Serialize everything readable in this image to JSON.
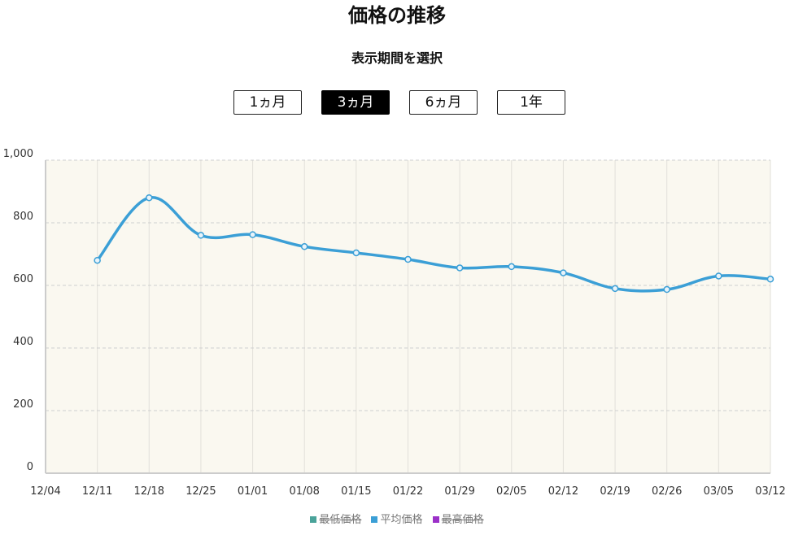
{
  "header": {
    "title": "価格の推移",
    "subtitle": "表示期間を選択"
  },
  "period_buttons": [
    {
      "label": "1ヵ月",
      "active": false
    },
    {
      "label": "3ヵ月",
      "active": true
    },
    {
      "label": "6ヵ月",
      "active": false
    },
    {
      "label": "1年",
      "active": false
    }
  ],
  "legend": [
    {
      "label": "最低価格",
      "color": "#4aa39a",
      "hidden": true
    },
    {
      "label": "平均価格",
      "color": "#3b9fd6",
      "hidden": false
    },
    {
      "label": "最高価格",
      "color": "#9b30c8",
      "hidden": true
    }
  ],
  "colors": {
    "plot_background": "#faf8f0",
    "line": "#3b9fd6",
    "grid": "#d9d9d9"
  },
  "chart_data": {
    "type": "line",
    "x_tick_labels": [
      "12/04",
      "12/11",
      "12/18",
      "12/25",
      "01/01",
      "01/08",
      "01/15",
      "01/22",
      "01/29",
      "02/05",
      "02/12",
      "02/19",
      "02/26",
      "03/05",
      "03/12"
    ],
    "y_tick_labels": [
      "0",
      "200",
      "400",
      "600",
      "800",
      "1,000"
    ],
    "y_ticks": [
      0,
      200,
      400,
      600,
      800,
      1000
    ],
    "ylim": [
      0,
      1000
    ],
    "grid": true,
    "legend_position": "bottom",
    "series": [
      {
        "name": "平均価格",
        "x": [
          "12/11",
          "12/18",
          "12/25",
          "01/01",
          "01/08",
          "01/15",
          "01/22",
          "01/29",
          "02/05",
          "02/12",
          "02/19",
          "02/26",
          "03/05",
          "03/12"
        ],
        "values": [
          680,
          880,
          760,
          762,
          724,
          704,
          683,
          656,
          660,
          640,
          590,
          587,
          630,
          620
        ]
      }
    ]
  }
}
